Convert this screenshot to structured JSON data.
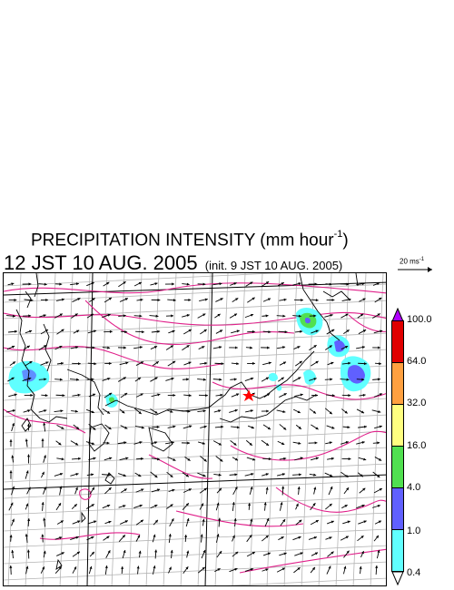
{
  "title": {
    "main": "PRECIPITATION INTENSITY (mm hour",
    "exponent": "-1",
    "close": ")"
  },
  "subtitle": {
    "valid": "12 JST 10 AUG. 2005",
    "init": "(init. 9 JST 10 AUG. 2005)"
  },
  "reference_vector": {
    "label": "20 ms",
    "exponent": "-1"
  },
  "colorbar": {
    "labels": [
      "100.0",
      "64.0",
      "32.0",
      "16.0",
      "4.0",
      "1.0",
      "0.4"
    ],
    "colors": {
      "overflow": "#b000ff",
      "c64_100": "#e00000",
      "c32_64": "#ffa040",
      "c16_32": "#ffff80",
      "c4_16": "#50e050",
      "c1_4": "#6060ff",
      "c04_1": "#60ffff",
      "underflow": "#ffffff"
    }
  },
  "map": {
    "marker": "red-star",
    "colors": {
      "coastline": "#000000",
      "contours": "#e0208a",
      "graticule": "#b4b4b4",
      "wind_arrows": "#000000"
    }
  }
}
